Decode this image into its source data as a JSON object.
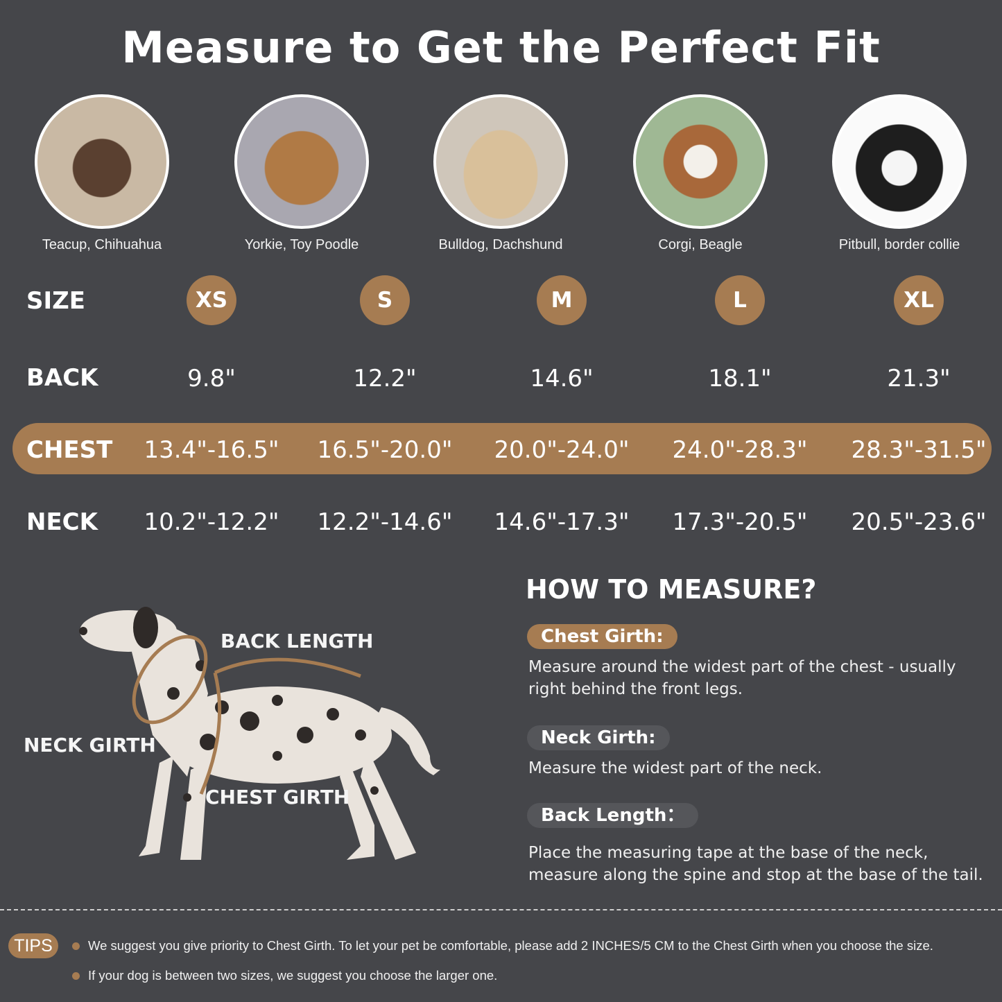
{
  "title": "Measure to Get the Perfect Fit",
  "colors": {
    "background": "#45464a",
    "accent": "#a67c52",
    "pill_gray": "#55565a"
  },
  "breeds": [
    {
      "caption": "Teacup, Chihuahua",
      "image": "chihuahua-photo"
    },
    {
      "caption": "Yorkie, Toy Poodle",
      "image": "yorkie-photo"
    },
    {
      "caption": "Bulldog, Dachshund",
      "image": "pug-photo"
    },
    {
      "caption": "Corgi, Beagle",
      "image": "beagle-photo"
    },
    {
      "caption": "Pitbull, border collie",
      "image": "border-collie-photo"
    }
  ],
  "table": {
    "size_label": "SIZE",
    "sizes": [
      "XS",
      "S",
      "M",
      "L",
      "XL"
    ],
    "back_label": "BACK",
    "back": [
      "9.8\"",
      "12.2\"",
      "14.6\"",
      "18.1\"",
      "21.3\""
    ],
    "chest_label": "CHEST",
    "chest": [
      "13.4\"-16.5\"",
      "16.5\"-20.0\"",
      "20.0\"-24.0\"",
      "24.0\"-28.3\"",
      "28.3\"-31.5\""
    ],
    "neck_label": "NECK",
    "neck": [
      "10.2\"-12.2\"",
      "12.2\"-14.6\"",
      "14.6\"-17.3\"",
      "17.3\"-20.5\"",
      "20.5\"-23.6\""
    ]
  },
  "diagram": {
    "back_length": "BACK LENGTH",
    "neck_girth": "NECK GIRTH",
    "chest_girth": "CHEST GIRTH"
  },
  "how_to": {
    "title": "HOW TO MEASURE?",
    "chest": {
      "label": "Chest Girth:",
      "text": "Measure around the widest part of the chest - usually right behind the front legs."
    },
    "neck": {
      "label": "Neck Girth:",
      "text": "Measure the widest part of the neck."
    },
    "back": {
      "label": "Back Length：",
      "text": "Place the measuring tape at the base of the neck, measure along the spine and stop at the base of the tail."
    }
  },
  "tips": {
    "label": "TIPS",
    "items": [
      "We suggest you give priority to Chest Girth. To let your pet be comfortable, please add 2 INCHES/5 CM to the Chest Girth when you choose the size.",
      "If your dog is between two sizes, we suggest you choose the larger one."
    ]
  }
}
